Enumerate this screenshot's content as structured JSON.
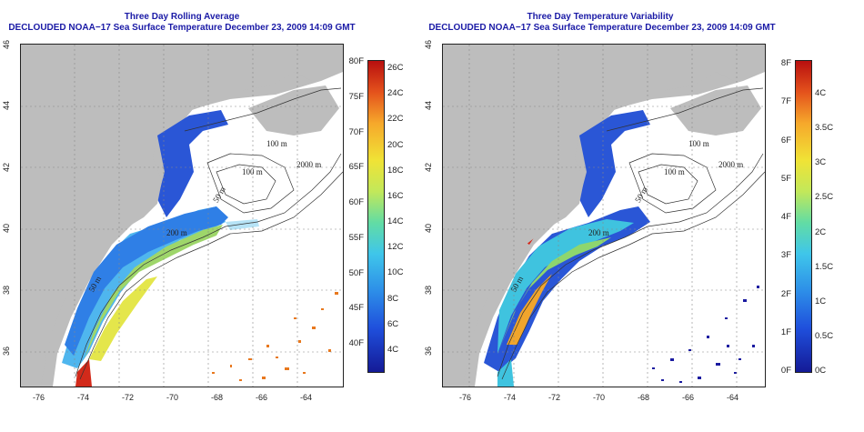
{
  "panels": [
    {
      "id": "left",
      "title_line1": "Three Day Rolling Average",
      "title_line2": "DECLOUDED NOAA−17 Sea Surface Temperature December 23, 2009 14:09 GMT",
      "colorbar_left_labels": [
        "80F",
        "75F",
        "70F",
        "65F",
        "60F",
        "55F",
        "50F",
        "45F",
        "40F"
      ],
      "colorbar_right_labels": [
        "26C",
        "24C",
        "22C",
        "20C",
        "18C",
        "16C",
        "14C",
        "12C",
        "10C",
        "8C",
        "6C",
        "4C"
      ]
    },
    {
      "id": "right",
      "title_line1": "Three Day Temperature Variability",
      "title_line2": "DECLOUDED NOAA−17 Sea Surface Temperature December 23, 2009 14:09 GMT",
      "colorbar_left_labels": [
        "8F",
        "7F",
        "6F",
        "5F",
        "4F",
        "3F",
        "2F",
        "1F",
        "0F"
      ],
      "colorbar_right_labels": [
        "4C",
        "3.5C",
        "3C",
        "2.5C",
        "2C",
        "1.5C",
        "1C",
        "0.5C",
        "0C"
      ]
    }
  ],
  "lon_ticks": [
    "-76",
    "-74",
    "-72",
    "-70",
    "-68",
    "-66",
    "-64"
  ],
  "lat_ticks": [
    "46",
    "44",
    "42",
    "40",
    "38",
    "36"
  ],
  "contour_labels": [
    "100 m",
    "100 m",
    "2000 m",
    "50 m",
    "200 m",
    "50 m"
  ],
  "colors": {
    "land": "#bdbdbd",
    "ocean": "#ffffff",
    "title": "#1a1aa6"
  }
}
